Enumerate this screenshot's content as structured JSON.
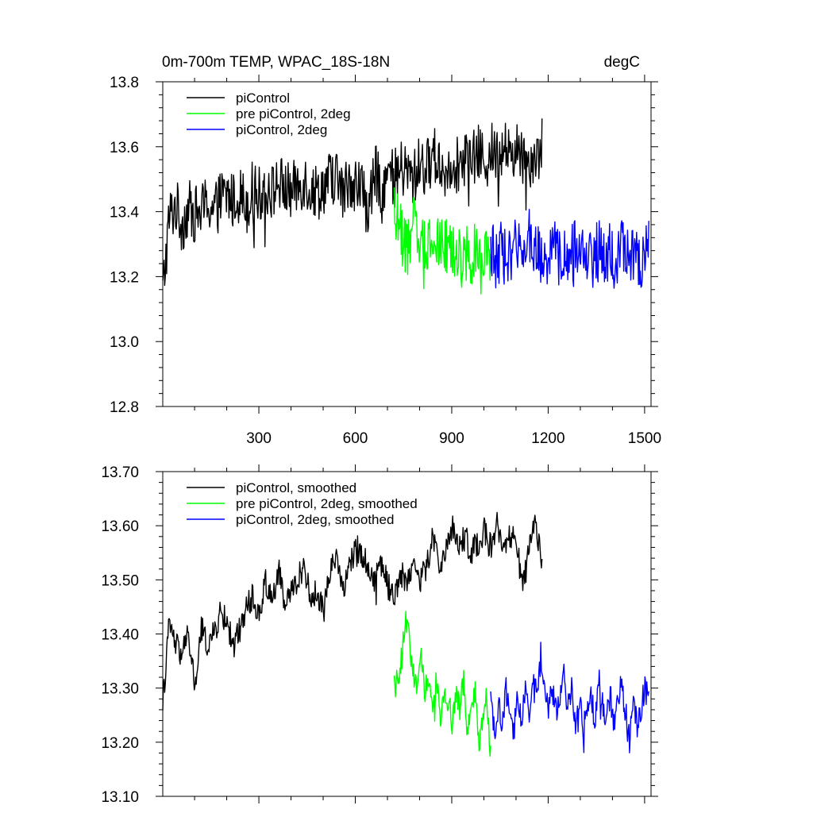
{
  "header": {
    "title": "0m-700m TEMP, WPAC_18S-18N",
    "units": "degC"
  },
  "colors": {
    "piControl": "#000000",
    "pre_piControl_2deg": "#00ff00",
    "piControl_2deg": "#0000ff"
  },
  "chart_data": [
    {
      "type": "line",
      "panel": "top",
      "title": "0m-700m TEMP, WPAC_18S-18N",
      "units_label": "degC",
      "xlim": [
        1,
        1520
      ],
      "ylim": [
        12.8,
        13.8
      ],
      "x_ticks": [
        300,
        600,
        900,
        1200,
        1500
      ],
      "x_tick_labels": [
        "300",
        "600",
        "900",
        "1200",
        "1500"
      ],
      "y_ticks": [
        12.8,
        13.0,
        13.2,
        13.4,
        13.6,
        13.8
      ],
      "y_tick_labels": [
        "12.8",
        "13.0",
        "13.2",
        "13.4",
        "13.6",
        "13.8"
      ],
      "legend_position": "top-left",
      "series": [
        {
          "name": "piControl",
          "color": "#000000",
          "x_start": 1,
          "x_step": 20,
          "values": [
            13.15,
            13.38,
            13.42,
            13.36,
            13.41,
            13.39,
            13.4,
            13.43,
            13.4,
            13.44,
            13.45,
            13.43,
            13.46,
            13.42,
            13.47,
            13.45,
            13.48,
            13.46,
            13.49,
            13.47,
            13.46,
            13.48,
            13.5,
            13.47,
            13.46,
            13.48,
            13.5,
            13.51,
            13.45,
            13.5,
            13.49,
            13.47,
            13.4,
            13.52,
            13.48,
            13.51,
            13.5,
            13.53,
            13.52,
            13.5,
            13.55,
            13.53,
            13.58,
            13.55,
            13.52,
            13.56,
            13.54,
            13.57,
            13.55,
            13.58,
            13.56,
            13.59,
            13.57,
            13.6,
            13.58,
            13.59,
            13.57,
            13.56,
            13.58,
            13.6
          ]
        },
        {
          "name": "pre piControl, 2deg",
          "color": "#00ff00",
          "x_start": 721,
          "x_step": 12,
          "values": [
            13.36,
            13.38,
            13.32,
            13.3,
            13.28,
            13.36,
            13.34,
            13.31,
            13.29,
            13.33,
            13.27,
            13.32,
            13.31,
            13.28,
            13.3,
            13.25,
            13.29,
            13.27,
            13.24,
            13.28,
            13.26,
            13.3,
            13.22,
            13.25,
            13.27,
            13.2
          ]
        },
        {
          "name": "piControl, 2deg",
          "color": "#0000ff",
          "x_start": 1021,
          "x_step": 12,
          "values": [
            13.28,
            13.25,
            13.26,
            13.29,
            13.24,
            13.27,
            13.3,
            13.26,
            13.31,
            13.28,
            13.33,
            13.27,
            13.29,
            13.26,
            13.3,
            13.24,
            13.27,
            13.29,
            13.25,
            13.28,
            13.24,
            13.27,
            13.3,
            13.26,
            13.28,
            13.25,
            13.27,
            13.24,
            13.29,
            13.26,
            13.25,
            13.28,
            13.24,
            13.26,
            13.3,
            13.27,
            13.25,
            13.28,
            13.26,
            13.24,
            13.28,
            13.29
          ]
        }
      ]
    },
    {
      "type": "line",
      "panel": "bottom",
      "xlim": [
        1,
        1520
      ],
      "ylim": [
        13.1,
        13.7
      ],
      "x_ticks": [
        300,
        600,
        900,
        1200,
        1500
      ],
      "y_ticks": [
        13.1,
        13.2,
        13.3,
        13.4,
        13.5,
        13.6,
        13.7
      ],
      "y_tick_labels": [
        "13.10",
        "13.20",
        "13.30",
        "13.40",
        "13.50",
        "13.60",
        "13.70"
      ],
      "legend_position": "top-left",
      "series": [
        {
          "name": "piControl, smoothed",
          "color": "#000000",
          "x_start": 1,
          "x_step": 20,
          "values": [
            13.27,
            13.42,
            13.38,
            13.36,
            13.4,
            13.3,
            13.41,
            13.38,
            13.4,
            13.44,
            13.42,
            13.38,
            13.41,
            13.45,
            13.47,
            13.43,
            13.5,
            13.46,
            13.52,
            13.45,
            13.48,
            13.5,
            13.53,
            13.46,
            13.48,
            13.44,
            13.52,
            13.55,
            13.48,
            13.52,
            13.56,
            13.55,
            13.52,
            13.5,
            13.54,
            13.49,
            13.47,
            13.51,
            13.5,
            13.53,
            13.5,
            13.52,
            13.58,
            13.53,
            13.55,
            13.6,
            13.56,
            13.58,
            13.55,
            13.57,
            13.59,
            13.56,
            13.6,
            13.55,
            13.58,
            13.57,
            13.48,
            13.56,
            13.6,
            13.53
          ]
        },
        {
          "name": "pre piControl, 2deg, smoothed",
          "color": "#00ff00",
          "x_start": 721,
          "x_step": 12,
          "values": [
            13.31,
            13.32,
            13.36,
            13.43,
            13.38,
            13.33,
            13.3,
            13.35,
            13.29,
            13.32,
            13.27,
            13.31,
            13.25,
            13.3,
            13.28,
            13.24,
            13.29,
            13.26,
            13.31,
            13.22,
            13.27,
            13.3,
            13.19,
            13.25,
            13.28,
            13.17
          ]
        },
        {
          "name": "piControl, 2deg, smoothed",
          "color": "#0000ff",
          "x_start": 1021,
          "x_step": 12,
          "values": [
            13.28,
            13.22,
            13.27,
            13.24,
            13.29,
            13.25,
            13.22,
            13.28,
            13.24,
            13.3,
            13.26,
            13.33,
            13.28,
            13.36,
            13.3,
            13.26,
            13.3,
            13.25,
            13.28,
            13.33,
            13.26,
            13.3,
            13.24,
            13.28,
            13.22,
            13.26,
            13.29,
            13.24,
            13.32,
            13.27,
            13.25,
            13.29,
            13.23,
            13.27,
            13.31,
            13.25,
            13.2,
            13.28,
            13.23,
            13.26,
            13.3,
            13.28
          ]
        }
      ]
    }
  ]
}
